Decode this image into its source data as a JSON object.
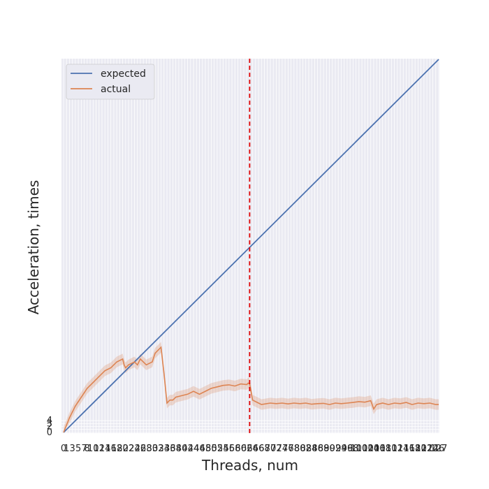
{
  "chart_data": {
    "type": "line",
    "title": "",
    "xlabel": "Threads, num",
    "ylabel": "Acceleration, times",
    "xlim": [
      0,
      127
    ],
    "ylim": [
      0,
      127
    ],
    "grid": true,
    "legend_position": "top-left",
    "colors": {
      "expected": "#4c72b0",
      "actual": "#dd8452",
      "vline": "#e00000",
      "band": "#dd8452",
      "plot_bg": "#eaeaf2",
      "grid": "#ffffff"
    },
    "x_ticks": [
      0,
      1,
      3,
      5,
      7,
      8,
      10,
      12,
      14,
      16,
      18,
      20,
      22,
      24,
      26,
      28,
      30,
      32,
      34,
      36,
      38,
      40,
      42,
      44,
      46,
      48,
      50,
      52,
      54,
      56,
      58,
      60,
      62,
      64,
      66,
      68,
      70,
      72,
      74,
      76,
      78,
      80,
      82,
      84,
      86,
      88,
      90,
      92,
      94,
      96,
      98,
      100,
      102,
      104,
      106,
      108,
      110,
      112,
      114,
      116,
      118,
      120,
      122,
      124,
      126,
      127
    ],
    "y_ticks": [
      0,
      2,
      3,
      4
    ],
    "vline_x": 63,
    "series": [
      {
        "name": "expected",
        "x": [
          0,
          127
        ],
        "values": [
          0,
          127
        ]
      },
      {
        "name": "actual",
        "x": [
          0,
          2,
          4,
          6,
          8,
          10,
          12,
          14,
          16,
          18,
          20,
          20.5,
          21,
          22,
          24,
          25,
          26,
          28,
          30,
          31,
          32,
          33,
          34,
          35,
          36,
          37,
          38,
          40,
          42,
          44,
          46,
          48,
          50,
          52,
          54,
          56,
          58,
          60,
          62,
          62.5,
          63,
          64,
          66,
          67,
          70,
          72,
          74,
          76,
          78,
          80,
          82,
          84,
          86,
          88,
          90,
          92,
          94,
          96,
          98,
          100,
          102,
          104,
          105,
          106,
          108,
          110,
          112,
          114,
          116,
          118,
          120,
          122,
          124,
          126,
          127
        ],
        "values": [
          0,
          5,
          9,
          12,
          15,
          17,
          19,
          21,
          22,
          24,
          25,
          23,
          22,
          23,
          24,
          23,
          25,
          23,
          24,
          27,
          28,
          29,
          20,
          10,
          11,
          11,
          12,
          12.5,
          13,
          14,
          13,
          14,
          15,
          15.5,
          16,
          16.2,
          15.8,
          16.5,
          16.3,
          16.8,
          16.5,
          11,
          10,
          9.5,
          10,
          9.8,
          10,
          9.7,
          10,
          9.8,
          10,
          9.6,
          9.8,
          9.9,
          9.5,
          10,
          9.8,
          10,
          10.2,
          10.5,
          10.3,
          10.8,
          8,
          9.5,
          10,
          9.5,
          10,
          9.8,
          10.2,
          9.5,
          10,
          9.8,
          10,
          9.5,
          9.5
        ],
        "band": 1.8
      }
    ]
  }
}
